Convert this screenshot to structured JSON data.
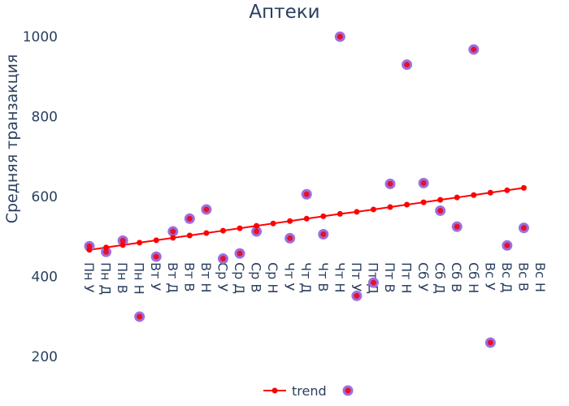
{
  "chart_data": {
    "type": "scatter",
    "title": "Аптеки",
    "xlabel": "",
    "ylabel": "Средняя транзакция",
    "ylim": [
      140,
      1040
    ],
    "yticks": [
      200,
      400,
      600,
      800,
      1000
    ],
    "grid": false,
    "legend_placement": "bottom-center",
    "categories": [
      "Пн У",
      "Пн Д",
      "Пн В",
      "Пн Н",
      "Вт У",
      "Вт Д",
      "Вт В",
      "Вт Н",
      "Ср У",
      "Ср Д",
      "Ср В",
      "Ср Н",
      "Чт У",
      "Чт Д",
      "Чт В",
      "Чт Н",
      "Пт У",
      "Пт Д",
      "Пт В",
      "Пт Н",
      "Сб У",
      "Сб Д",
      "Сб В",
      "Сб Н",
      "Вс У",
      "Вс Д",
      "Вс В",
      "Вс Н"
    ],
    "series": [
      {
        "name": "trend",
        "mode": "lines+markers",
        "color": "#ff0000",
        "values": [
          467,
          473,
          479,
          485,
          491,
          497,
          503,
          509,
          515,
          521,
          527,
          533,
          539,
          545,
          551,
          557,
          562,
          568,
          574,
          580,
          586,
          592,
          598,
          604,
          610,
          616,
          622,
          null
        ]
      },
      {
        "name": "",
        "mode": "markers",
        "color": "#9c6fe0",
        "inner_color": "#e8102a",
        "values": [
          476,
          462,
          490,
          300,
          450,
          513,
          545,
          568,
          445,
          458,
          513,
          null,
          496,
          606,
          506,
          1000,
          352,
          385,
          632,
          930,
          634,
          565,
          525,
          968,
          235,
          478,
          522,
          null
        ]
      }
    ]
  }
}
